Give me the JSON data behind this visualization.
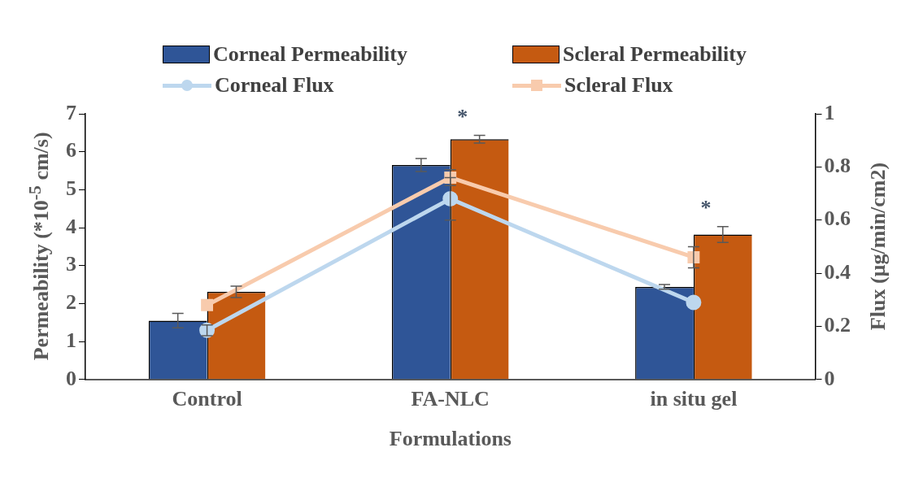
{
  "chart_data": {
    "type": "bar",
    "xlabel": "Formulations",
    "ylabel": "Permeability (*10$^{-5}$ cm/s)",
    "y2label": "Flux (µg/min/cm2)",
    "categories": [
      "Control",
      "FA-NLC",
      "in situ gel"
    ],
    "series": [
      {
        "name": "Corneal Permeability",
        "color": "#2f5597",
        "values": [
          1.55,
          5.65,
          2.44
        ],
        "errors": [
          0.19,
          0.17,
          0.06
        ]
      },
      {
        "name": "Scleral Permeability",
        "color": "#c55a11",
        "values": [
          2.31,
          6.33,
          3.82
        ],
        "errors": [
          0.15,
          0.1,
          0.21
        ]
      },
      {
        "name": "Corneal Flux",
        "type": "line",
        "axis": "y2",
        "marker": "circle",
        "color": "#bdd7ee",
        "values": [
          0.185,
          0.68,
          0.29
        ],
        "errors": [
          0.02,
          0.08,
          null
        ]
      },
      {
        "name": "Scleral Flux",
        "type": "line",
        "axis": "y2",
        "marker": "square",
        "color": "#f8cbad",
        "values": [
          0.28,
          0.76,
          0.46
        ],
        "errors": [
          null,
          0.03,
          0.04
        ]
      }
    ],
    "ylim": [
      0,
      7
    ],
    "yticks": [
      0,
      1,
      2,
      3,
      4,
      5,
      6,
      7
    ],
    "y2lim": [
      0,
      1
    ],
    "y2ticks": [
      0,
      0.2,
      0.4,
      0.6,
      0.8,
      1
    ],
    "grid": false,
    "legend": "top",
    "annotations": [
      "*",
      "*"
    ]
  }
}
